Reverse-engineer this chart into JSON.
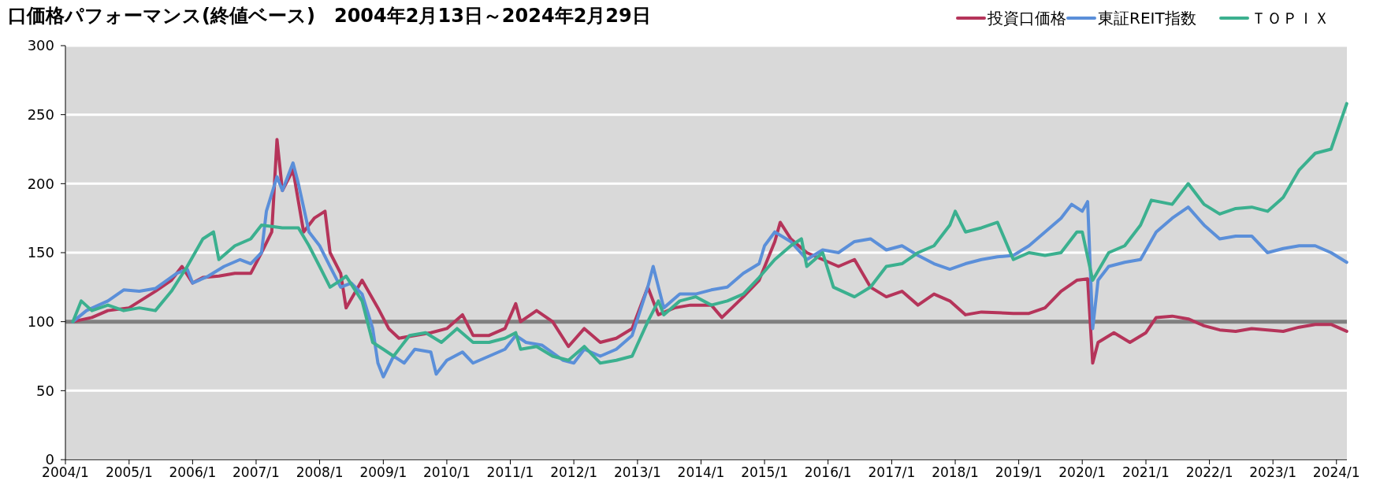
{
  "chart_data": {
    "type": "line",
    "title": "口価格パフォーマンス(終値ベース)　2004年2月13日～2024年2月29日",
    "xlim": [
      "2004-01",
      "2024-03"
    ],
    "ylim": [
      0,
      300
    ],
    "yticks": [
      0,
      50,
      100,
      150,
      200,
      250,
      300
    ],
    "xticks": [
      {
        "value": "2004-01",
        "label": "2004/1"
      },
      {
        "value": "2005-01",
        "label": "2005/1"
      },
      {
        "value": "2006-01",
        "label": "2006/1"
      },
      {
        "value": "2007-01",
        "label": "2007/1"
      },
      {
        "value": "2008-01",
        "label": "2008/1"
      },
      {
        "value": "2009-01",
        "label": "2009/1"
      },
      {
        "value": "2010-01",
        "label": "2010/1"
      },
      {
        "value": "2011-01",
        "label": "2011/1"
      },
      {
        "value": "2012-01",
        "label": "2012/1"
      },
      {
        "value": "2013-01",
        "label": "2013/1"
      },
      {
        "value": "2014-01",
        "label": "2014/1"
      },
      {
        "value": "2015-01",
        "label": "2015/1"
      },
      {
        "value": "2016-01",
        "label": "2016/1"
      },
      {
        "value": "2017-01",
        "label": "2017/1"
      },
      {
        "value": "2018-01",
        "label": "2018/1"
      },
      {
        "value": "2019-01",
        "label": "2019/1"
      },
      {
        "value": "2020-01",
        "label": "2020/1"
      },
      {
        "value": "2021-01",
        "label": "2021/1"
      },
      {
        "value": "2022-01",
        "label": "2022/1"
      },
      {
        "value": "2023-01",
        "label": "2023/1"
      },
      {
        "value": "2024-01",
        "label": "2024/1"
      }
    ],
    "grid": "y",
    "legend": "top right",
    "line_style": "solid",
    "marker": "none",
    "ref_lines": [
      {
        "axis": "y",
        "value": 100,
        "color": "#808080"
      }
    ],
    "series": [
      {
        "name": "投資口価格",
        "color": "#b5345a",
        "x": [
          "2004-02-13",
          "2004-06",
          "2004-09",
          "2005-01",
          "2005-06",
          "2005-09",
          "2005-11",
          "2006-01",
          "2006-03",
          "2006-06",
          "2006-09",
          "2006-12",
          "2007-02",
          "2007-04",
          "2007-05",
          "2007-06",
          "2007-08",
          "2007-10",
          "2007-12",
          "2008-02",
          "2008-03",
          "2008-05",
          "2008-06",
          "2008-09",
          "2008-12",
          "2009-02",
          "2009-04",
          "2009-07",
          "2009-10",
          "2010-01",
          "2010-04",
          "2010-06",
          "2010-09",
          "2010-12",
          "2011-02",
          "2011-03",
          "2011-06",
          "2011-09",
          "2011-12",
          "2012-03",
          "2012-06",
          "2012-09",
          "2012-12",
          "2013-03",
          "2013-05",
          "2013-08",
          "2013-11",
          "2014-03",
          "2014-05",
          "2014-09",
          "2014-12",
          "2015-03",
          "2015-04",
          "2015-06",
          "2015-09",
          "2015-12",
          "2016-03",
          "2016-06",
          "2016-09",
          "2016-12",
          "2017-03",
          "2017-06",
          "2017-09",
          "2017-12",
          "2018-03",
          "2018-06",
          "2018-12",
          "2019-03",
          "2019-06",
          "2019-09",
          "2019-12",
          "2020-02",
          "2020-03",
          "2020-04",
          "2020-07",
          "2020-10",
          "2021-01",
          "2021-03",
          "2021-06",
          "2021-09",
          "2021-12",
          "2022-03",
          "2022-06",
          "2022-09",
          "2022-12",
          "2023-03",
          "2023-06",
          "2023-09",
          "2023-12",
          "2024-02-29"
        ],
        "values": [
          100,
          103,
          108,
          110,
          122,
          130,
          140,
          128,
          132,
          133,
          135,
          135,
          150,
          165,
          232,
          195,
          210,
          165,
          175,
          180,
          150,
          135,
          110,
          130,
          110,
          95,
          88,
          90,
          92,
          95,
          105,
          90,
          90,
          95,
          113,
          100,
          108,
          100,
          82,
          95,
          85,
          88,
          95,
          125,
          105,
          110,
          112,
          112,
          103,
          118,
          130,
          158,
          172,
          160,
          150,
          145,
          140,
          145,
          125,
          118,
          122,
          112,
          120,
          115,
          105,
          107,
          106,
          106,
          110,
          122,
          130,
          131,
          70,
          85,
          92,
          85,
          92,
          103,
          104,
          102,
          97,
          94,
          93,
          95,
          94,
          93,
          96,
          98,
          98,
          93
        ]
      },
      {
        "name": "東証REIT指数",
        "color": "#5b8fd9",
        "x": [
          "2004-02-13",
          "2004-05",
          "2004-09",
          "2004-12",
          "2005-03",
          "2005-06",
          "2005-10",
          "2005-12",
          "2006-01",
          "2006-04",
          "2006-07",
          "2006-10",
          "2006-12",
          "2007-02",
          "2007-03",
          "2007-05",
          "2007-06",
          "2007-08",
          "2007-09",
          "2007-11",
          "2008-01",
          "2008-03",
          "2008-05",
          "2008-07",
          "2008-09",
          "2008-11",
          "2008-12",
          "2009-01",
          "2009-03",
          "2009-05",
          "2009-07",
          "2009-10",
          "2009-11",
          "2010-01",
          "2010-04",
          "2010-06",
          "2010-09",
          "2010-12",
          "2011-02",
          "2011-04",
          "2011-07",
          "2011-11",
          "2012-01",
          "2012-03",
          "2012-06",
          "2012-09",
          "2012-12",
          "2013-03",
          "2013-04",
          "2013-06",
          "2013-09",
          "2013-12",
          "2014-03",
          "2014-06",
          "2014-09",
          "2014-12",
          "2015-01",
          "2015-03",
          "2015-06",
          "2015-09",
          "2015-12",
          "2016-03",
          "2016-06",
          "2016-09",
          "2016-12",
          "2017-03",
          "2017-06",
          "2017-09",
          "2017-12",
          "2018-03",
          "2018-06",
          "2018-09",
          "2018-12",
          "2019-03",
          "2019-06",
          "2019-09",
          "2019-11",
          "2020-01",
          "2020-02",
          "2020-03",
          "2020-04",
          "2020-06",
          "2020-09",
          "2020-12",
          "2021-03",
          "2021-06",
          "2021-09",
          "2021-12",
          "2022-03",
          "2022-06",
          "2022-09",
          "2022-12",
          "2023-03",
          "2023-06",
          "2023-09",
          "2023-12",
          "2024-02-29"
        ],
        "values": [
          100,
          108,
          115,
          123,
          122,
          124,
          135,
          138,
          128,
          133,
          140,
          145,
          142,
          150,
          180,
          205,
          195,
          215,
          200,
          165,
          155,
          140,
          125,
          128,
          120,
          95,
          70,
          60,
          75,
          70,
          80,
          78,
          62,
          72,
          78,
          70,
          75,
          80,
          90,
          85,
          83,
          72,
          70,
          80,
          75,
          80,
          90,
          125,
          140,
          110,
          120,
          120,
          123,
          125,
          135,
          142,
          155,
          165,
          158,
          145,
          152,
          150,
          158,
          160,
          152,
          155,
          148,
          142,
          138,
          142,
          145,
          147,
          148,
          155,
          165,
          175,
          185,
          180,
          187,
          95,
          130,
          140,
          143,
          145,
          165,
          175,
          183,
          170,
          160,
          162,
          162,
          150,
          153,
          155,
          155,
          150,
          143
        ]
      },
      {
        "name": "ＴＯＰＩＸ",
        "color": "#3bb08f",
        "x": [
          "2004-02-13",
          "2004-04",
          "2004-06",
          "2004-09",
          "2004-12",
          "2005-03",
          "2005-06",
          "2005-09",
          "2005-12",
          "2006-03",
          "2006-05",
          "2006-06",
          "2006-09",
          "2006-12",
          "2007-02",
          "2007-06",
          "2007-09",
          "2007-11",
          "2008-01",
          "2008-03",
          "2008-05",
          "2008-06",
          "2008-09",
          "2008-11",
          "2009-01",
          "2009-03",
          "2009-06",
          "2009-09",
          "2009-12",
          "2010-03",
          "2010-06",
          "2010-09",
          "2010-12",
          "2011-02",
          "2011-03",
          "2011-06",
          "2011-09",
          "2011-12",
          "2012-03",
          "2012-06",
          "2012-09",
          "2012-12",
          "2013-03",
          "2013-05",
          "2013-06",
          "2013-09",
          "2013-12",
          "2014-03",
          "2014-06",
          "2014-09",
          "2014-12",
          "2015-03",
          "2015-06",
          "2015-08",
          "2015-09",
          "2015-12",
          "2016-02",
          "2016-06",
          "2016-09",
          "2016-12",
          "2017-03",
          "2017-06",
          "2017-09",
          "2017-12",
          "2018-01",
          "2018-03",
          "2018-06",
          "2018-09",
          "2018-12",
          "2019-03",
          "2019-06",
          "2019-09",
          "2019-12",
          "2020-01",
          "2020-03",
          "2020-06",
          "2020-09",
          "2020-12",
          "2021-02",
          "2021-06",
          "2021-09",
          "2021-12",
          "2022-03",
          "2022-06",
          "2022-09",
          "2022-12",
          "2023-03",
          "2023-06",
          "2023-09",
          "2023-12",
          "2024-02-29"
        ],
        "values": [
          100,
          115,
          108,
          112,
          108,
          110,
          108,
          122,
          140,
          160,
          165,
          145,
          155,
          160,
          170,
          168,
          168,
          155,
          140,
          125,
          130,
          133,
          115,
          85,
          80,
          75,
          90,
          92,
          85,
          95,
          85,
          85,
          88,
          92,
          80,
          82,
          75,
          72,
          82,
          70,
          72,
          75,
          100,
          115,
          105,
          115,
          118,
          112,
          115,
          120,
          132,
          145,
          155,
          160,
          140,
          150,
          125,
          118,
          125,
          140,
          142,
          150,
          155,
          170,
          180,
          165,
          168,
          172,
          145,
          150,
          148,
          150,
          165,
          165,
          130,
          150,
          155,
          170,
          188,
          185,
          200,
          185,
          178,
          182,
          183,
          180,
          190,
          210,
          222,
          225,
          258
        ]
      }
    ]
  }
}
